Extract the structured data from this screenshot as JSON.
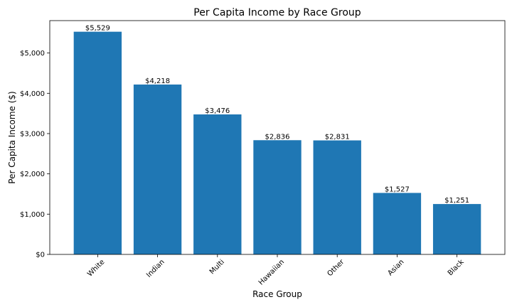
{
  "chart_data": {
    "type": "bar",
    "title": "Per Capita Income by Race Group",
    "xlabel": "Race Group",
    "ylabel": "Per Capita Income ($)",
    "categories": [
      "White",
      "Indian",
      "Multi",
      "Hawaiian",
      "Other",
      "Asian",
      "Black"
    ],
    "values": [
      5529,
      4218,
      3476,
      2836,
      2831,
      1527,
      1251
    ],
    "data_labels": [
      "$5,529",
      "$4,218",
      "$3,476",
      "$2,836",
      "$2,831",
      "$1,527",
      "$1,251"
    ],
    "yticks": [
      0,
      1000,
      2000,
      3000,
      4000,
      5000
    ],
    "ytick_labels": [
      "$0",
      "$1,000",
      "$2,000",
      "$3,000",
      "$4,000",
      "$5,000"
    ],
    "ylim": [
      0,
      5805
    ],
    "grid": false,
    "color": "#1f77b4"
  }
}
